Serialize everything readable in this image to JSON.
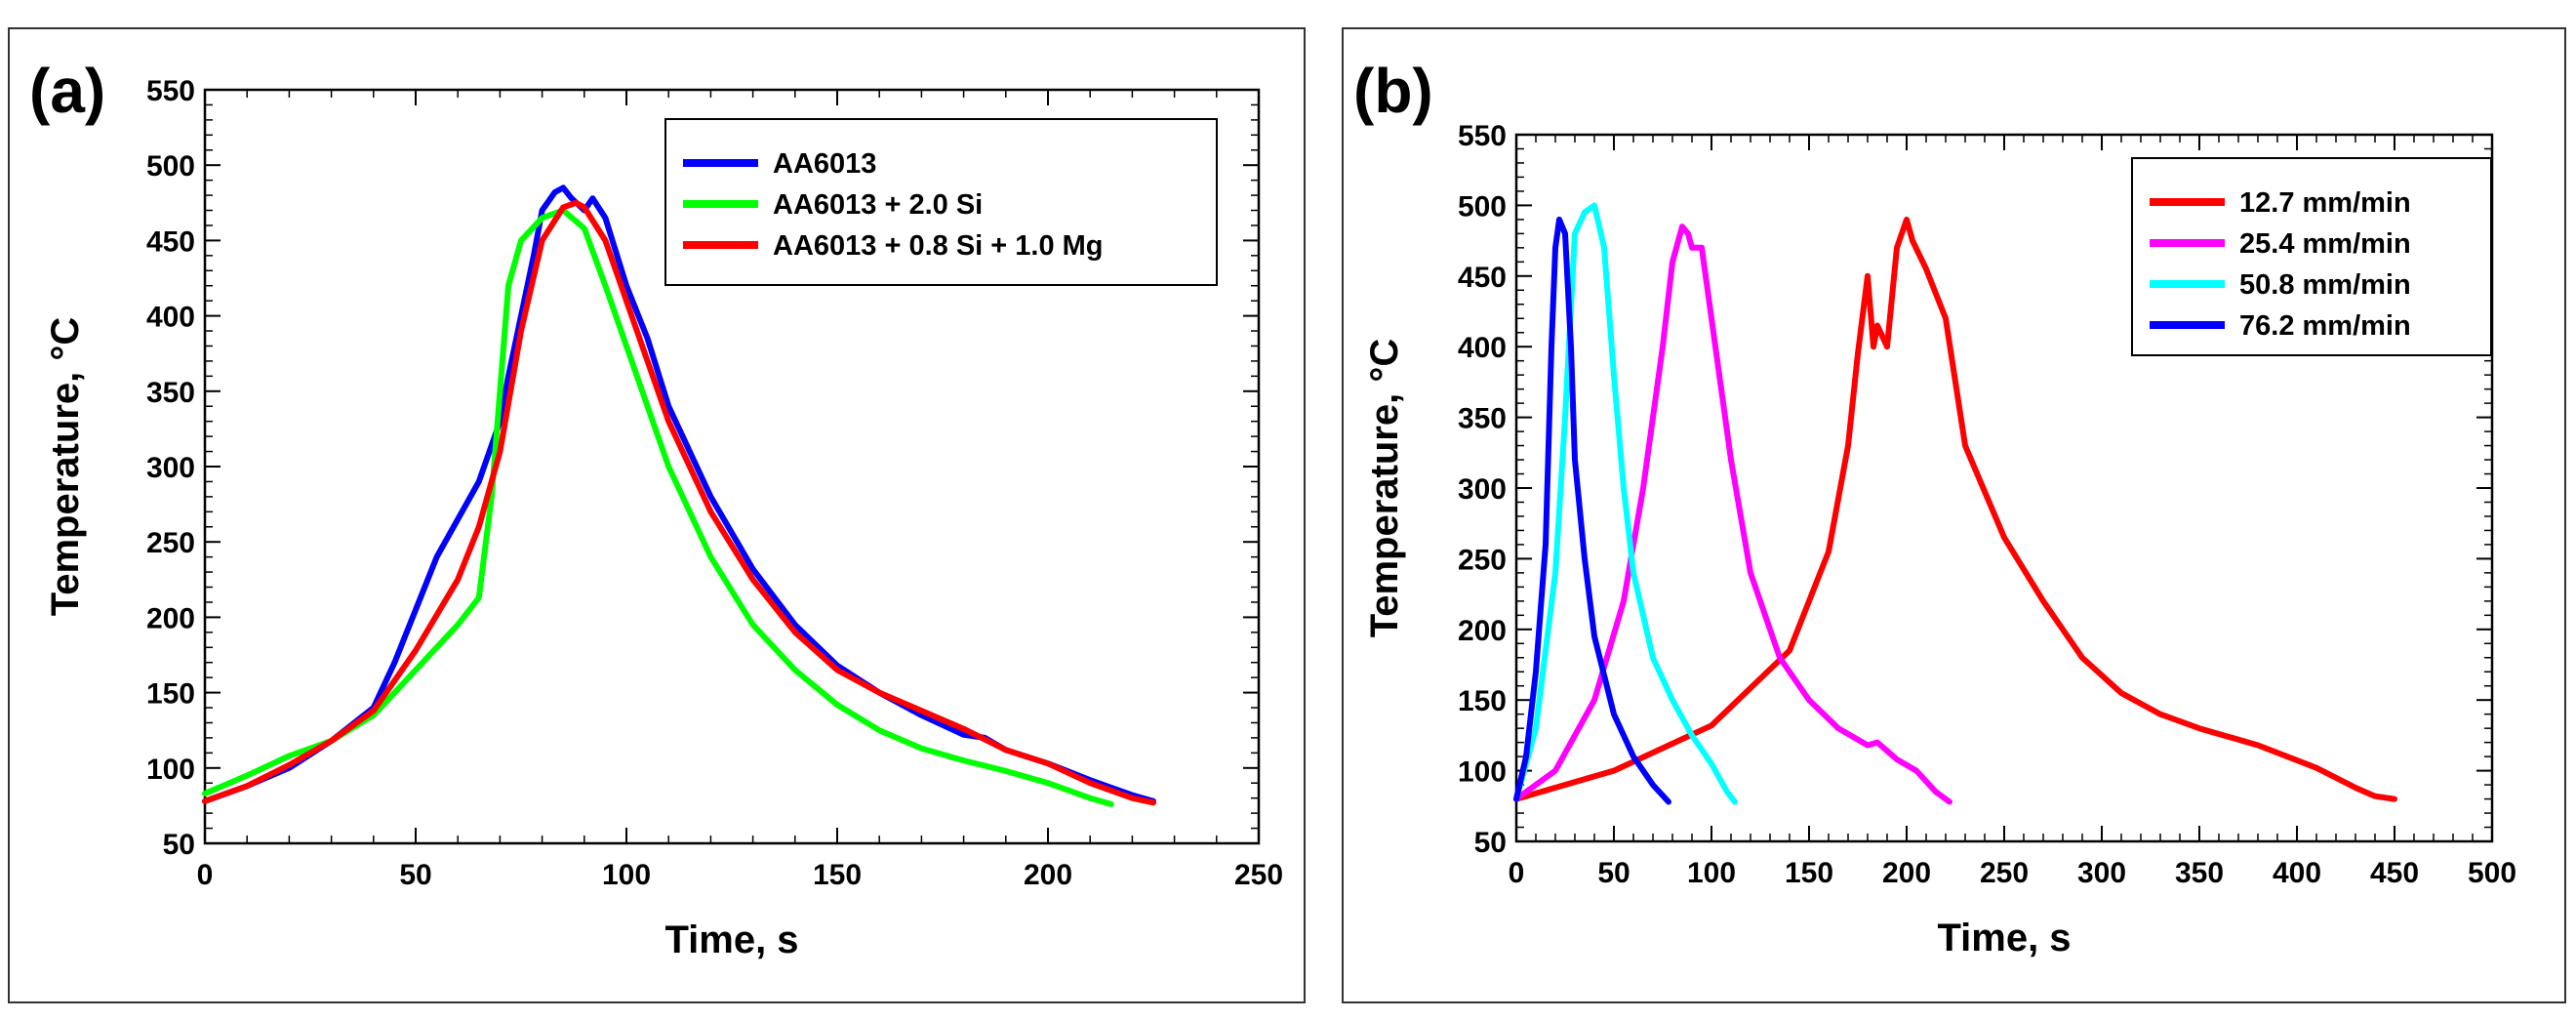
{
  "chart_data": [
    {
      "type": "line",
      "panel_label": "(a)",
      "title": "",
      "xlabel": "Time, s",
      "ylabel": "Temperature, °C",
      "xlim": [
        0,
        250
      ],
      "ylim": [
        50,
        550
      ],
      "xticks": [
        0,
        50,
        100,
        150,
        200,
        250
      ],
      "yticks": [
        50,
        100,
        150,
        200,
        250,
        300,
        350,
        400,
        450,
        500,
        550
      ],
      "legend_position": "top-right",
      "series": [
        {
          "name": "AA6013",
          "color": "#0000ff",
          "x": [
            0,
            10,
            20,
            30,
            40,
            45,
            50,
            55,
            60,
            65,
            70,
            72,
            75,
            78,
            80,
            83,
            85,
            87,
            90,
            92,
            95,
            100,
            105,
            110,
            120,
            130,
            140,
            150,
            160,
            170,
            180,
            185,
            190,
            200,
            210,
            220,
            225
          ],
          "y": [
            78,
            88,
            100,
            118,
            140,
            170,
            205,
            240,
            265,
            290,
            330,
            360,
            400,
            440,
            470,
            482,
            485,
            478,
            470,
            478,
            465,
            420,
            385,
            340,
            280,
            232,
            195,
            168,
            150,
            135,
            122,
            120,
            112,
            103,
            92,
            82,
            78
          ]
        },
        {
          "name": "AA6013 + 2.0 Si",
          "color": "#00ff00",
          "x": [
            0,
            10,
            20,
            30,
            40,
            50,
            60,
            65,
            68,
            70,
            72,
            75,
            80,
            85,
            90,
            95,
            100,
            110,
            120,
            130,
            140,
            150,
            160,
            170,
            180,
            190,
            200,
            210,
            215
          ],
          "y": [
            83,
            95,
            108,
            118,
            135,
            165,
            195,
            213,
            280,
            350,
            420,
            450,
            465,
            470,
            458,
            420,
            380,
            300,
            240,
            195,
            165,
            142,
            125,
            113,
            105,
            98,
            90,
            80,
            76
          ]
        },
        {
          "name": "AA6013 + 0.8 Si + 1.0 Mg",
          "color": "#ff0000",
          "x": [
            0,
            10,
            20,
            30,
            40,
            50,
            60,
            65,
            70,
            75,
            80,
            85,
            88,
            90,
            95,
            100,
            110,
            120,
            130,
            140,
            150,
            160,
            170,
            180,
            190,
            200,
            210,
            220,
            225
          ],
          "y": [
            78,
            88,
            102,
            118,
            138,
            178,
            225,
            260,
            310,
            390,
            450,
            472,
            475,
            472,
            450,
            410,
            330,
            270,
            225,
            190,
            165,
            150,
            138,
            126,
            112,
            103,
            90,
            80,
            77
          ]
        }
      ]
    },
    {
      "type": "line",
      "panel_label": "(b)",
      "title": "",
      "xlabel": "Time, s",
      "ylabel": "Temperature, °C",
      "xlim": [
        0,
        500
      ],
      "ylim": [
        50,
        550
      ],
      "xticks": [
        0,
        50,
        100,
        150,
        200,
        250,
        300,
        350,
        400,
        450,
        500
      ],
      "yticks": [
        50,
        100,
        150,
        200,
        250,
        300,
        350,
        400,
        450,
        500,
        550
      ],
      "legend_position": "top-right",
      "series": [
        {
          "name": "12.7 mm/min",
          "color": "#ff0000",
          "x": [
            0,
            50,
            100,
            140,
            160,
            170,
            175,
            180,
            183,
            185,
            190,
            195,
            200,
            203,
            210,
            220,
            230,
            250,
            270,
            290,
            310,
            330,
            350,
            380,
            410,
            430,
            440,
            450
          ],
          "y": [
            80,
            100,
            132,
            185,
            255,
            330,
            395,
            450,
            400,
            415,
            400,
            470,
            490,
            475,
            455,
            420,
            330,
            265,
            220,
            180,
            155,
            140,
            130,
            118,
            102,
            88,
            82,
            80
          ]
        },
        {
          "name": "25.4 mm/min",
          "color": "#ff00ff",
          "x": [
            0,
            20,
            40,
            55,
            65,
            75,
            80,
            85,
            88,
            90,
            95,
            100,
            110,
            120,
            135,
            150,
            165,
            180,
            185,
            195,
            205,
            215,
            222
          ],
          "y": [
            80,
            100,
            150,
            220,
            300,
            400,
            460,
            485,
            480,
            470,
            470,
            420,
            320,
            240,
            180,
            150,
            130,
            118,
            120,
            108,
            100,
            85,
            78
          ]
        },
        {
          "name": "50.8 mm/min",
          "color": "#00ffff",
          "x": [
            0,
            10,
            20,
            25,
            30,
            35,
            40,
            45,
            50,
            55,
            60,
            70,
            80,
            90,
            100,
            108,
            112
          ],
          "y": [
            80,
            130,
            240,
            350,
            480,
            495,
            500,
            470,
            380,
            300,
            240,
            180,
            150,
            125,
            105,
            85,
            78
          ]
        },
        {
          "name": "76.2 mm/min",
          "color": "#0000ff",
          "x": [
            0,
            5,
            10,
            15,
            18,
            20,
            22,
            25,
            28,
            30,
            35,
            40,
            50,
            60,
            70,
            78
          ],
          "y": [
            80,
            110,
            170,
            260,
            400,
            470,
            490,
            480,
            400,
            320,
            250,
            195,
            140,
            110,
            90,
            78
          ]
        }
      ]
    }
  ]
}
